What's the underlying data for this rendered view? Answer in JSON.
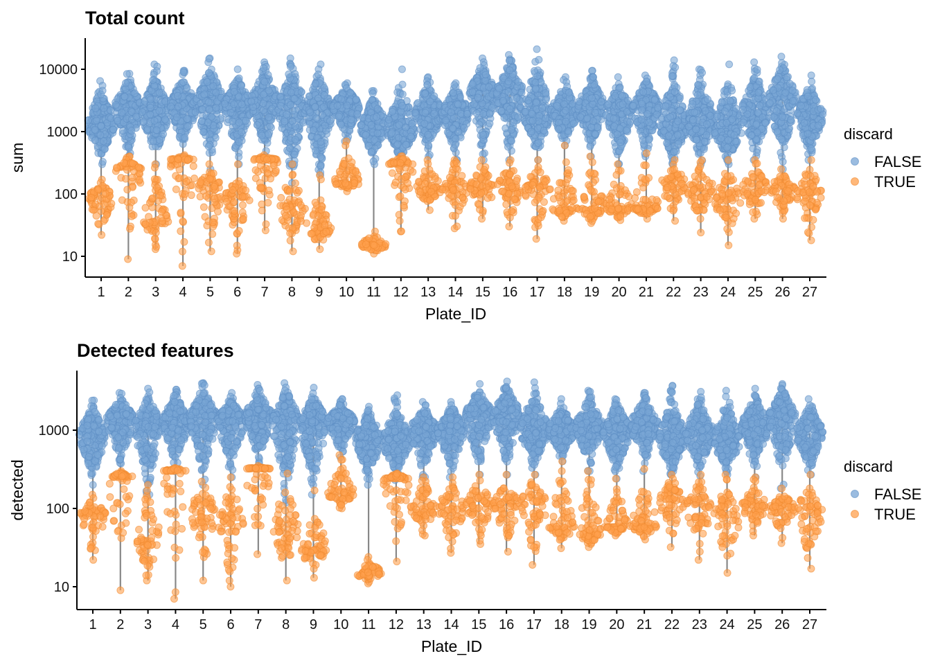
{
  "chart_data": [
    {
      "type": "scatter",
      "subtype": "beeswarm",
      "title": "Total count",
      "xlabel": "Plate_ID",
      "ylabel": "sum",
      "yscale": "log",
      "ylim": [
        5,
        30000
      ],
      "yticks": [
        10,
        100,
        1000,
        10000
      ],
      "yticklabels": [
        "10",
        "100",
        "1000",
        "10000"
      ],
      "categories": [
        "1",
        "2",
        "3",
        "4",
        "5",
        "6",
        "7",
        "8",
        "9",
        "10",
        "11",
        "12",
        "13",
        "14",
        "15",
        "16",
        "17",
        "18",
        "19",
        "20",
        "21",
        "22",
        "23",
        "24",
        "25",
        "26",
        "27"
      ],
      "legend": {
        "title": "discard",
        "position": "right",
        "entries": [
          "FALSE",
          "TRUE"
        ]
      },
      "series": [
        {
          "name": "FALSE",
          "color": "#7aa6d6",
          "median": [
            1300,
            2500,
            2000,
            2500,
            3000,
            2500,
            3000,
            2500,
            2200,
            2500,
            1200,
            1000,
            2000,
            2000,
            4000,
            4000,
            2000,
            2000,
            2500,
            2000,
            2500,
            1200,
            1500,
            1000,
            2000,
            3500,
            1800
          ],
          "min": [
            300,
            350,
            300,
            400,
            250,
            300,
            400,
            150,
            200,
            700,
            300,
            300,
            400,
            350,
            350,
            350,
            350,
            600,
            400,
            300,
            400,
            300,
            300,
            300,
            350,
            250,
            350
          ],
          "max": [
            6500,
            8500,
            12000,
            9500,
            15000,
            10000,
            13000,
            15000,
            12000,
            6000,
            4500,
            10000,
            7500,
            6000,
            15000,
            17000,
            21000,
            7500,
            9500,
            7500,
            8000,
            14000,
            10000,
            12000,
            13000,
            16000,
            8000
          ]
        },
        {
          "name": "TRUE",
          "color": "#ffa04d",
          "median": [
            90,
            250,
            40,
            350,
            120,
            80,
            350,
            60,
            30,
            150,
            15,
            300,
            120,
            120,
            130,
            130,
            130,
            60,
            60,
            60,
            60,
            150,
            120,
            80,
            120,
            120,
            100
          ],
          "min": [
            22,
            9,
            13,
            7,
            12,
            11,
            26,
            12,
            13,
            110,
            11,
            25,
            55,
            28,
            40,
            30,
            19,
            37,
            34,
            38,
            40,
            37,
            24,
            15,
            40,
            40,
            18
          ],
          "max": [
            170,
            400,
            300,
            420,
            300,
            300,
            420,
            300,
            200,
            700,
            25,
            400,
            350,
            350,
            350,
            350,
            350,
            600,
            400,
            300,
            450,
            350,
            350,
            350,
            350,
            250,
            350
          ]
        }
      ]
    },
    {
      "type": "scatter",
      "subtype": "beeswarm",
      "title": "Detected features",
      "xlabel": "Plate_ID",
      "ylabel": "detected",
      "yscale": "log",
      "ylim": [
        5,
        6000
      ],
      "yticks": [
        10,
        100,
        1000
      ],
      "yticklabels": [
        "10",
        "100",
        "1000"
      ],
      "categories": [
        "1",
        "2",
        "3",
        "4",
        "5",
        "6",
        "7",
        "8",
        "9",
        "10",
        "11",
        "12",
        "13",
        "14",
        "15",
        "16",
        "17",
        "18",
        "19",
        "20",
        "21",
        "22",
        "23",
        "24",
        "25",
        "26",
        "27"
      ],
      "legend": {
        "title": "discard",
        "position": "right",
        "entries": [
          "FALSE",
          "TRUE"
        ]
      },
      "series": [
        {
          "name": "FALSE",
          "color": "#7aa6d6",
          "median": [
            900,
            1400,
            1100,
            1300,
            1500,
            1300,
            1500,
            1300,
            1200,
            1300,
            800,
            700,
            1000,
            1000,
            1600,
            1600,
            1000,
            1000,
            1100,
            1000,
            1200,
            700,
            900,
            700,
            1100,
            1500,
            900
          ],
          "min": [
            200,
            280,
            150,
            300,
            200,
            250,
            330,
            120,
            150,
            450,
            200,
            230,
            250,
            250,
            270,
            270,
            270,
            400,
            300,
            240,
            300,
            270,
            260,
            270,
            250,
            180,
            270
          ],
          "max": [
            2400,
            3000,
            3400,
            3300,
            4000,
            3000,
            3800,
            4000,
            3500,
            2500,
            2000,
            2800,
            2300,
            2300,
            3900,
            4200,
            4100,
            2500,
            3200,
            2500,
            3000,
            3700,
            3100,
            3200,
            3400,
            3900,
            2500
          ]
        },
        {
          "name": "TRUE",
          "color": "#ffa04d",
          "median": [
            85,
            250,
            40,
            300,
            100,
            75,
            320,
            60,
            30,
            150,
            15,
            240,
            100,
            100,
            110,
            110,
            120,
            60,
            50,
            60,
            60,
            130,
            110,
            80,
            110,
            100,
            90
          ],
          "min": [
            22,
            9,
            12,
            7,
            12,
            10,
            26,
            12,
            13,
            100,
            11,
            21,
            45,
            27,
            35,
            28,
            19,
            31,
            32,
            45,
            40,
            32,
            22,
            15,
            45,
            36,
            17
          ],
          "max": [
            150,
            300,
            200,
            330,
            220,
            250,
            350,
            280,
            170,
            480,
            24,
            280,
            250,
            250,
            270,
            270,
            270,
            400,
            300,
            240,
            320,
            270,
            270,
            270,
            250,
            180,
            270
          ]
        }
      ]
    }
  ]
}
